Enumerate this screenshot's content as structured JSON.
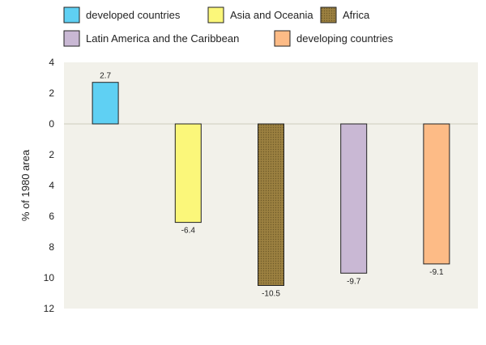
{
  "chart_data": {
    "type": "bar",
    "ylabel": "% of 1980 area",
    "ylim": [
      -12,
      4
    ],
    "y_ticks": [
      4,
      2,
      0,
      -2,
      -4,
      -6,
      -8,
      -10,
      -12
    ],
    "y_tick_labels": [
      "4",
      "2",
      "0",
      "2",
      "4",
      "6",
      "8",
      "10",
      "12"
    ],
    "legend_position": "top",
    "grid": false,
    "plot_background": "#f2f1ea",
    "series": [
      {
        "name": "developed countries",
        "value": 2.7,
        "label": "2.7",
        "color": "#5fd0f3"
      },
      {
        "name": "Asia and Oceania",
        "value": -6.4,
        "label": "-6.4",
        "color": "#fbf77a"
      },
      {
        "name": "Africa",
        "value": -10.5,
        "label": "-10.5",
        "color": "#9b8040",
        "pattern": "dotted"
      },
      {
        "name": "Latin America and the Caribbean",
        "value": -9.7,
        "label": "-9.7",
        "color": "#c9b8d4"
      },
      {
        "name": "developing countries",
        "value": -9.1,
        "label": "-9.1",
        "color": "#fdbb86"
      }
    ]
  }
}
